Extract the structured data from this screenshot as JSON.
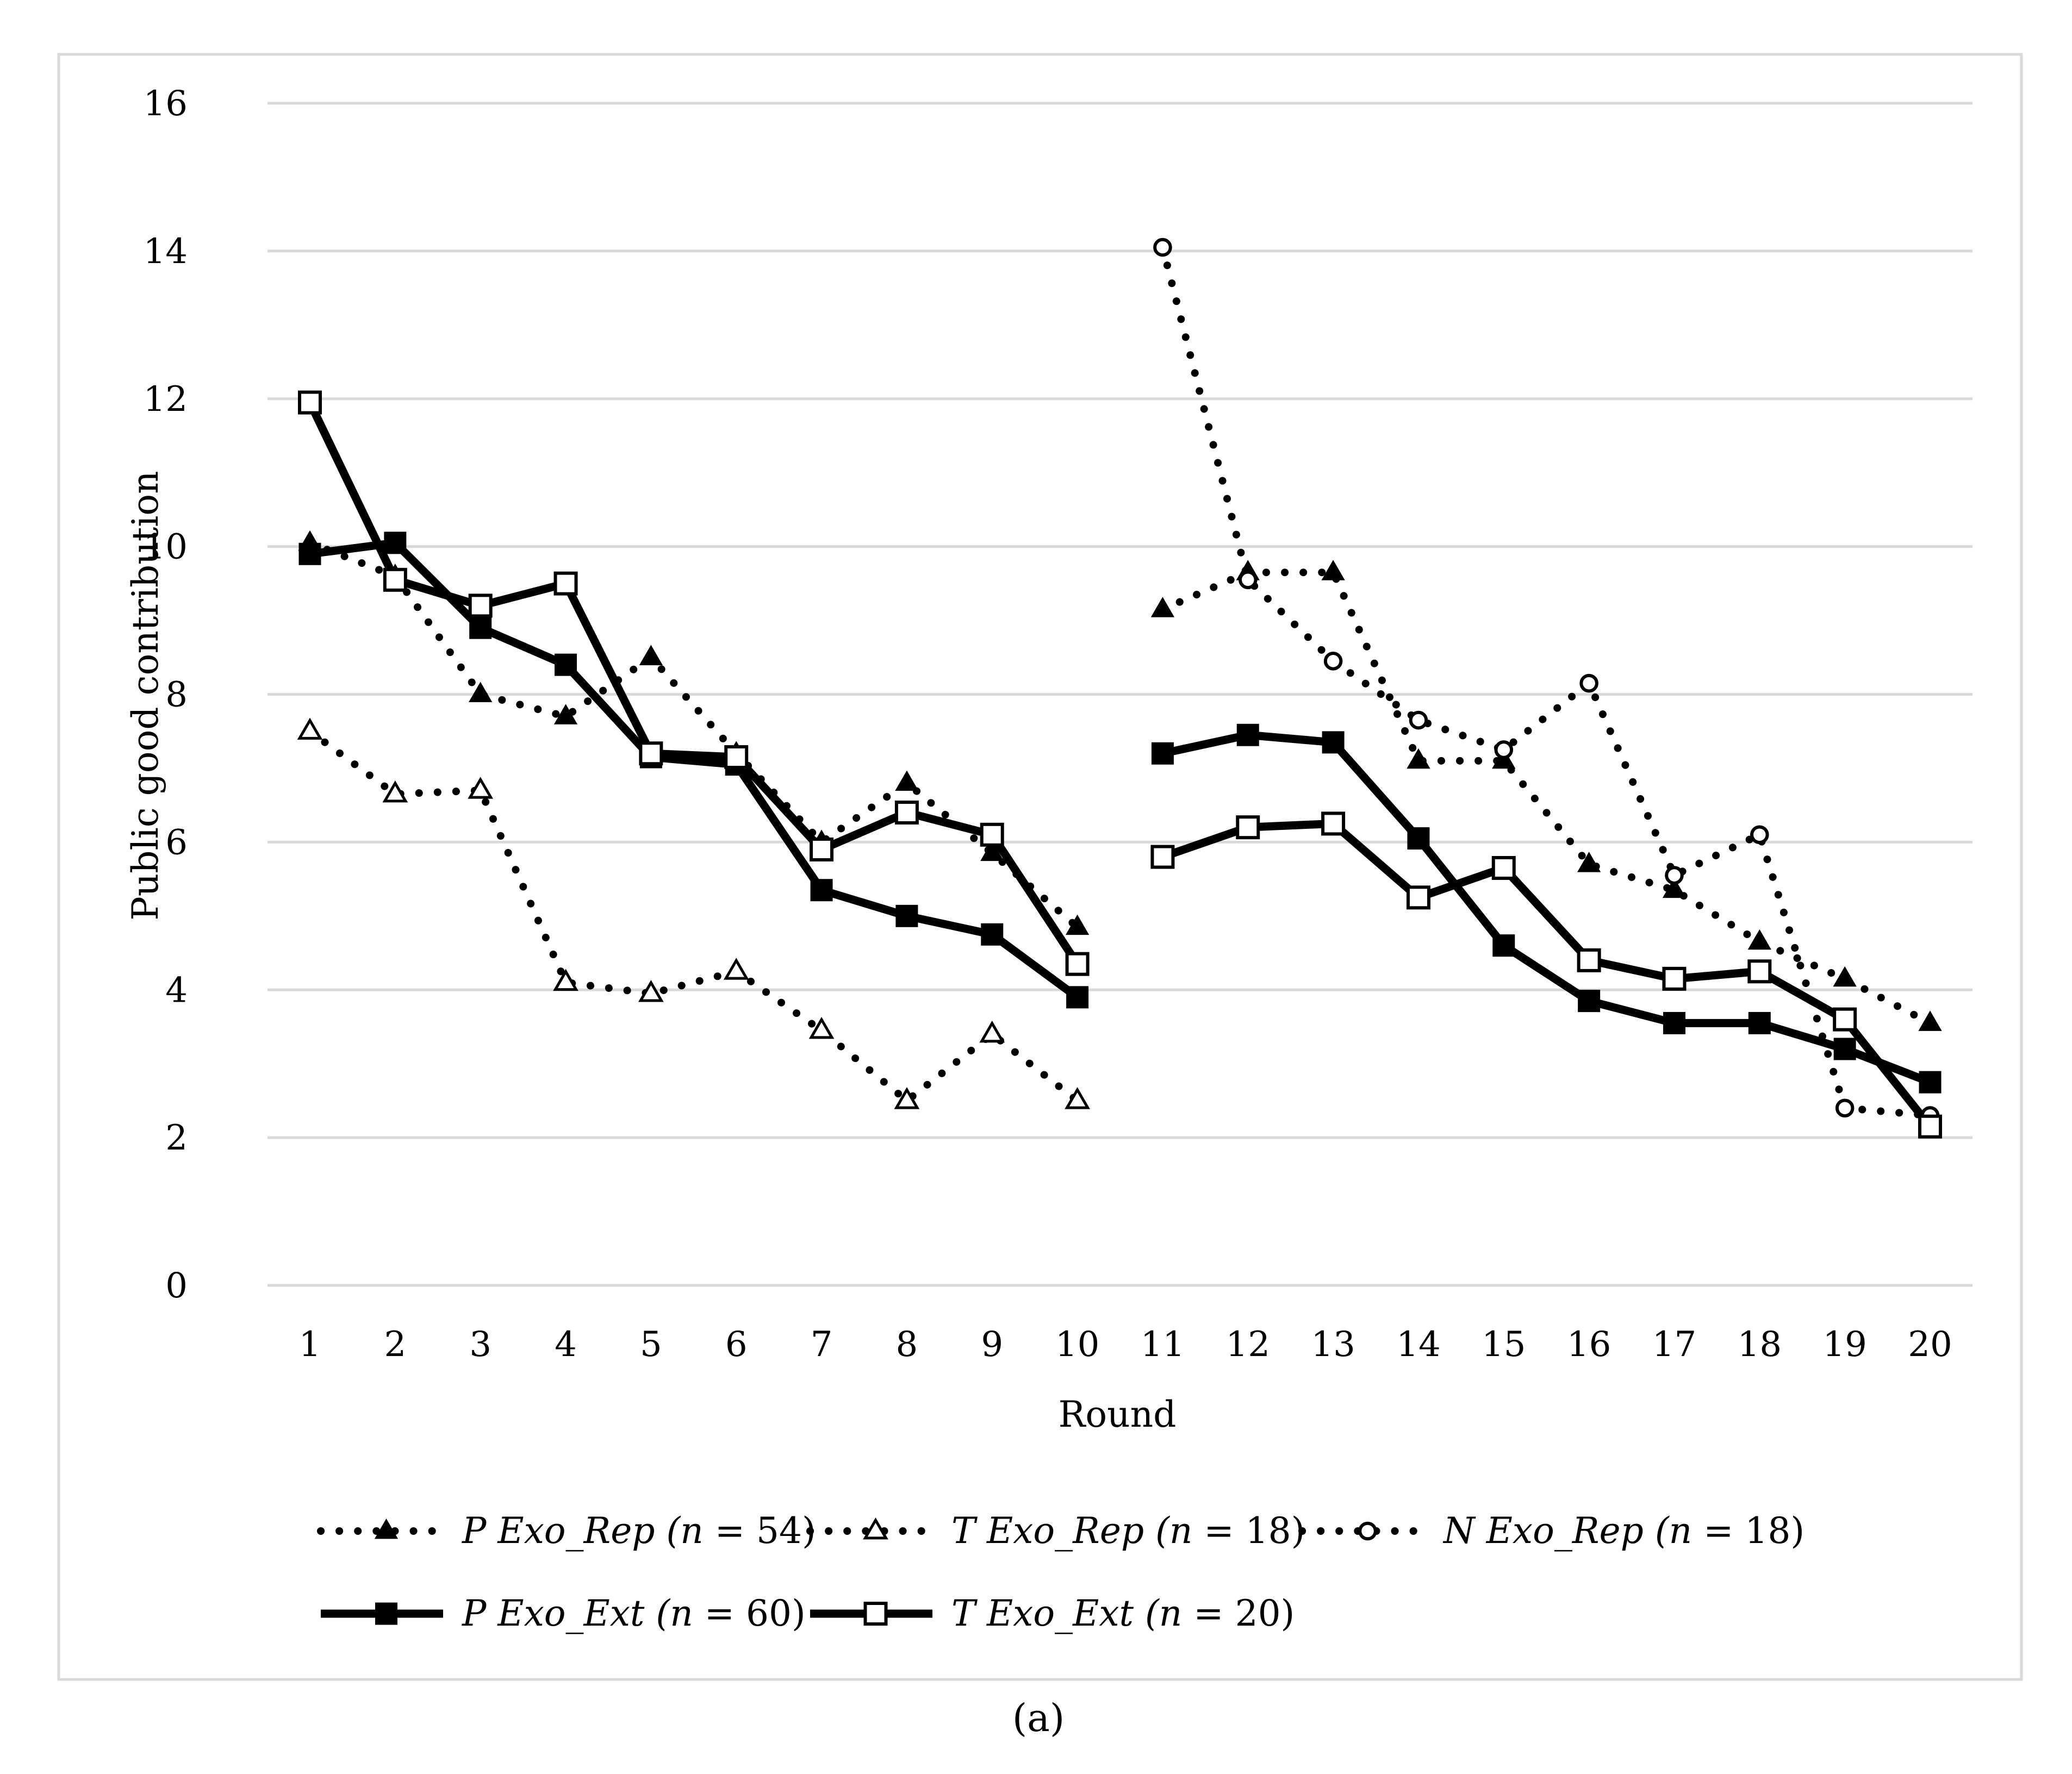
{
  "chart_data": {
    "type": "line",
    "title": "",
    "xlabel": "Round",
    "ylabel": "Public good contribution",
    "caption": "(a)",
    "x": [
      1,
      2,
      3,
      4,
      5,
      6,
      7,
      8,
      9,
      10,
      11,
      12,
      13,
      14,
      15,
      16,
      17,
      18,
      19,
      20
    ],
    "xlim": [
      1,
      20
    ],
    "ylim": [
      0,
      16
    ],
    "yticks": [
      0,
      2,
      4,
      6,
      8,
      10,
      12,
      14,
      16
    ],
    "grid": "horizontal",
    "legend_position": "bottom",
    "series": [
      {
        "name": "P Exo_Rep (n = 54)",
        "label_prefix": "P Exo_Rep (",
        "label_n": "n",
        "label_value": " = 54)",
        "line_style": "dotted",
        "marker": "filled-triangle",
        "values": [
          10.05,
          9.6,
          8.0,
          7.7,
          8.5,
          7.2,
          6.0,
          6.8,
          5.85,
          4.85,
          9.15,
          9.65,
          9.65,
          7.1,
          7.1,
          5.7,
          5.35,
          4.65,
          4.15,
          3.55
        ]
      },
      {
        "name": "T Exo_Rep (n = 18)",
        "label_prefix": "T Exo_Rep (",
        "label_n": "n",
        "label_value": " = 18)",
        "line_style": "dotted",
        "marker": "open-triangle",
        "values": [
          7.5,
          6.65,
          6.7,
          4.1,
          3.95,
          4.25,
          3.45,
          2.5,
          3.4,
          2.5,
          null,
          null,
          null,
          null,
          null,
          null,
          null,
          null,
          null,
          null
        ]
      },
      {
        "name": "N Exo_Rep (n = 18)",
        "label_prefix": "N Exo_Rep (",
        "label_n": "n",
        "label_value": " = 18)",
        "line_style": "dotted",
        "marker": "open-circle",
        "values": [
          null,
          null,
          null,
          null,
          null,
          null,
          null,
          null,
          null,
          null,
          14.05,
          9.55,
          8.45,
          7.65,
          7.25,
          8.15,
          5.55,
          6.1,
          2.4,
          2.3
        ]
      },
      {
        "name": "P Exo_Ext (n = 60)",
        "label_prefix": "P Exo_Ext (",
        "label_n": "n",
        "label_value": " = 60)",
        "line_style": "solid",
        "marker": "filled-square",
        "values": [
          9.9,
          10.05,
          8.9,
          8.4,
          7.15,
          7.05,
          5.35,
          5.0,
          4.75,
          3.9,
          7.2,
          7.45,
          7.35,
          6.05,
          4.6,
          3.85,
          3.55,
          3.55,
          3.2,
          2.75
        ]
      },
      {
        "name": "T Exo_Ext (n = 20)",
        "label_prefix": "T Exo_Ext (",
        "label_n": "n",
        "label_value": " = 20)",
        "line_style": "solid",
        "marker": "open-square",
        "values": [
          11.95,
          9.55,
          9.2,
          9.5,
          7.2,
          7.15,
          5.9,
          6.4,
          6.1,
          4.35,
          5.8,
          6.2,
          6.25,
          5.25,
          5.65,
          4.4,
          4.15,
          4.25,
          3.6,
          2.15
        ]
      }
    ],
    "segments": [
      [
        1,
        10
      ],
      [
        11,
        20
      ]
    ]
  }
}
